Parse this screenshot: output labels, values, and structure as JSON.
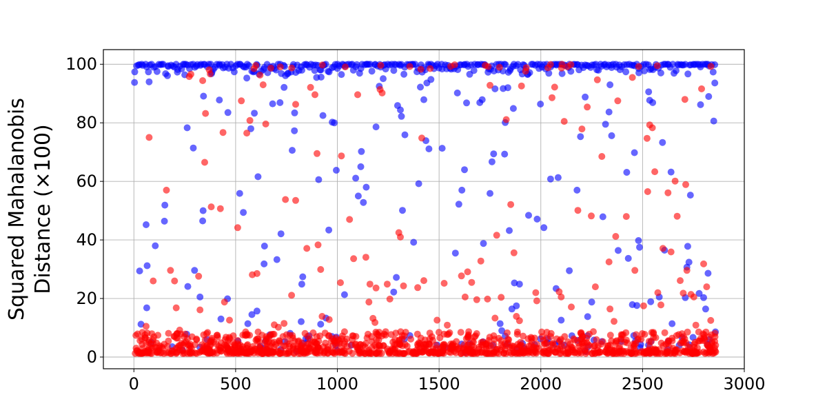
{
  "chart_data": {
    "type": "scatter",
    "title": "",
    "xlabel": "",
    "ylabel": "Squared Mahalanobis\nDistance (×100)",
    "xlim": [
      -150,
      3000
    ],
    "ylim": [
      -4,
      105
    ],
    "xticks": [
      0,
      500,
      1000,
      1500,
      2000,
      2500,
      3000
    ],
    "yticks": [
      0,
      20,
      40,
      60,
      80,
      100
    ],
    "grid": true,
    "point_count_per_series": 2860,
    "series": [
      {
        "color": "#0000ff",
        "points": [
          [
            3,
            93.8
          ],
          [
            28,
            29.4
          ],
          [
            35,
            11.2
          ],
          [
            60,
            45.2
          ],
          [
            63,
            16.8
          ],
          [
            65,
            31.2
          ],
          [
            75,
            94.0
          ],
          [
            85,
            5.0
          ],
          [
            105,
            38.0
          ],
          [
            150,
            46.4
          ],
          [
            152,
            51.9
          ],
          [
            165,
            96.1
          ],
          [
            215,
            98.2
          ],
          [
            250,
            96.4
          ],
          [
            260,
            7.8
          ],
          [
            262,
            78.3
          ],
          [
            265,
            24.1
          ],
          [
            292,
            71.4
          ],
          [
            298,
            29.6
          ],
          [
            325,
            20.5
          ],
          [
            338,
            46.5
          ],
          [
            340,
            50.0
          ],
          [
            342,
            89.1
          ],
          [
            360,
            3.0
          ],
          [
            383,
            97.2
          ],
          [
            420,
            87.8
          ],
          [
            428,
            13.0
          ],
          [
            460,
            19.9
          ],
          [
            462,
            83.5
          ],
          [
            520,
            55.9
          ],
          [
            538,
            49.4
          ],
          [
            555,
            95.3
          ],
          [
            560,
            11.4
          ],
          [
            575,
            78.0
          ],
          [
            580,
            14.5
          ],
          [
            592,
            83.3
          ],
          [
            605,
            15.7
          ],
          [
            610,
            61.6
          ],
          [
            640,
            31.8
          ],
          [
            642,
            37.9
          ],
          [
            668,
            7.6
          ],
          [
            682,
            86.5
          ],
          [
            703,
            33.3
          ],
          [
            718,
            86.9
          ],
          [
            723,
            42.1
          ],
          [
            738,
            92.1
          ],
          [
            745,
            96.1
          ],
          [
            768,
            8.1
          ],
          [
            778,
            70.6
          ],
          [
            789,
            77.3
          ],
          [
            790,
            83.4
          ],
          [
            822,
            12.1
          ],
          [
            830,
            27.4
          ],
          [
            825,
            24.9
          ],
          [
            898,
            95.5
          ],
          [
            908,
            60.6
          ],
          [
            918,
            11.2
          ],
          [
            920,
            95.6
          ],
          [
            929,
            82.5
          ],
          [
            944,
            13.3
          ],
          [
            958,
            43.4
          ],
          [
            975,
            80.2
          ],
          [
            985,
            80.0
          ],
          [
            995,
            63.8
          ],
          [
            1020,
            96.5
          ],
          [
            1035,
            21.3
          ],
          [
            1090,
            61.1
          ],
          [
            1103,
            55.0
          ],
          [
            1115,
            65.0
          ],
          [
            1118,
            70.2
          ],
          [
            1128,
            52.8
          ],
          [
            1142,
            58.0
          ],
          [
            1190,
            78.6
          ],
          [
            1206,
            92.5
          ],
          [
            1225,
            95.1
          ],
          [
            1277,
            22.2
          ],
          [
            1290,
            27.2
          ],
          [
            1296,
            85.9
          ],
          [
            1310,
            84.4
          ],
          [
            1315,
            82.2
          ],
          [
            1320,
            50.1
          ],
          [
            1332,
            75.9
          ],
          [
            1375,
            39.2
          ],
          [
            1400,
            59.2
          ],
          [
            1408,
            92.2
          ],
          [
            1425,
            87.9
          ],
          [
            1435,
            73.9
          ],
          [
            1440,
            93.6
          ],
          [
            1450,
            71.1
          ],
          [
            1460,
            94.8
          ],
          [
            1490,
            4.1
          ],
          [
            1515,
            71.3
          ],
          [
            1580,
            35.5
          ],
          [
            1590,
            90.2
          ],
          [
            1597,
            52.2
          ],
          [
            1612,
            57.0
          ],
          [
            1625,
            64.0
          ],
          [
            1635,
            86.8
          ],
          [
            1700,
            86.9
          ],
          [
            1712,
            87.9
          ],
          [
            1718,
            38.8
          ],
          [
            1750,
            55.9
          ],
          [
            1760,
            66.7
          ],
          [
            1768,
            69.4
          ],
          [
            1775,
            91.6
          ],
          [
            1800,
            11.4
          ],
          [
            1808,
            9.0
          ],
          [
            1815,
            91.7
          ],
          [
            1822,
            69.3
          ],
          [
            1825,
            80.1
          ],
          [
            1838,
            92.0
          ],
          [
            1845,
            43.2
          ],
          [
            1858,
            16.4
          ],
          [
            1865,
            84.9
          ],
          [
            1870,
            25.3
          ],
          [
            1880,
            17.5
          ],
          [
            1895,
            24.9
          ],
          [
            1935,
            96.5
          ],
          [
            1940,
            48.4
          ],
          [
            1982,
            47.1
          ],
          [
            1998,
            86.4
          ],
          [
            2015,
            44.2
          ],
          [
            2035,
            6.2
          ],
          [
            2048,
            60.8
          ],
          [
            2075,
            23.4
          ],
          [
            2085,
            61.3
          ],
          [
            2100,
            12.6
          ],
          [
            2140,
            29.5
          ],
          [
            2178,
            57.0
          ],
          [
            2195,
            75.3
          ],
          [
            2218,
            88.8
          ],
          [
            2230,
            13.8
          ],
          [
            2250,
            18.8
          ],
          [
            2305,
            47.9
          ],
          [
            2318,
            79.5
          ],
          [
            2335,
            83.7
          ],
          [
            2340,
            93.0
          ],
          [
            2348,
            75.6
          ],
          [
            2380,
            36.4
          ],
          [
            2395,
            5.3
          ],
          [
            2422,
            63.1
          ],
          [
            2430,
            33.7
          ],
          [
            2450,
            17.9
          ],
          [
            2460,
            69.8
          ],
          [
            2465,
            5.4
          ],
          [
            2472,
            17.6
          ],
          [
            2480,
            39.8
          ],
          [
            2485,
            37.5
          ],
          [
            2530,
            90.6
          ],
          [
            2535,
            87.7
          ],
          [
            2540,
            18.9
          ],
          [
            2550,
            86.9
          ],
          [
            2582,
            20.5
          ],
          [
            2598,
            73.3
          ],
          [
            2608,
            36.5
          ],
          [
            2640,
            63.2
          ],
          [
            2645,
            11.4
          ],
          [
            2680,
            4.0
          ],
          [
            2710,
            20.3
          ],
          [
            2718,
            30.7
          ],
          [
            2722,
            37.8
          ],
          [
            2728,
            32.4
          ],
          [
            2735,
            55.3
          ],
          [
            2748,
            6.7
          ],
          [
            2778,
            21.7
          ],
          [
            2785,
            86.2
          ],
          [
            2800,
            20.3
          ],
          [
            2810,
            16.4
          ],
          [
            2822,
            28.6
          ],
          [
            2825,
            89.0
          ],
          [
            2850,
            80.6
          ],
          [
            2855,
            93.6
          ],
          [
            2858,
            8.6
          ]
        ]
      },
      {
        "color": "#ff0000",
        "points": [
          [
            10,
            7.4
          ],
          [
            60,
            10.5
          ],
          [
            75,
            75.0
          ],
          [
            95,
            26.0
          ],
          [
            160,
            57.0
          ],
          [
            170,
            8.1
          ],
          [
            180,
            29.6
          ],
          [
            200,
            26.0
          ],
          [
            208,
            16.8
          ],
          [
            225,
            9.2
          ],
          [
            272,
            95.8
          ],
          [
            280,
            96.6
          ],
          [
            318,
            27.6
          ],
          [
            325,
            16.1
          ],
          [
            338,
            94.4
          ],
          [
            348,
            66.5
          ],
          [
            352,
            83.2
          ],
          [
            370,
            98.1
          ],
          [
            375,
            96.7
          ],
          [
            380,
            51.3
          ],
          [
            425,
            50.7
          ],
          [
            438,
            76.7
          ],
          [
            445,
            18.8
          ],
          [
            470,
            12.6
          ],
          [
            510,
            44.2
          ],
          [
            528,
            87.5
          ],
          [
            555,
            76.5
          ],
          [
            570,
            80.8
          ],
          [
            582,
            28.1
          ],
          [
            605,
            28.5
          ],
          [
            620,
            96.3
          ],
          [
            635,
            93.0
          ],
          [
            648,
            79.6
          ],
          [
            670,
            7.3
          ],
          [
            690,
            11.0
          ],
          [
            710,
            10.2
          ],
          [
            738,
            11.5
          ],
          [
            745,
            53.8
          ],
          [
            775,
            21.1
          ],
          [
            795,
            53.5
          ],
          [
            795,
            86.3
          ],
          [
            850,
            37.1
          ],
          [
            868,
            92.1
          ],
          [
            890,
            89.6
          ],
          [
            900,
            69.5
          ],
          [
            905,
            38.3
          ],
          [
            918,
            29.9
          ],
          [
            925,
            13.9
          ],
          [
            960,
            12.8
          ],
          [
            1015,
            25.4
          ],
          [
            1020,
            68.7
          ],
          [
            1060,
            47.0
          ],
          [
            1080,
            33.6
          ],
          [
            1100,
            89.6
          ],
          [
            1140,
            34.1
          ],
          [
            1155,
            18.8
          ],
          [
            1160,
            24.9
          ],
          [
            1175,
            13.2
          ],
          [
            1185,
            11.8
          ],
          [
            1190,
            23.6
          ],
          [
            1210,
            91.4
          ],
          [
            1220,
            90.2
          ],
          [
            1245,
            24.9
          ],
          [
            1258,
            19.8
          ],
          [
            1302,
            42.5
          ],
          [
            1310,
            41.0
          ],
          [
            1325,
            24.3
          ],
          [
            1395,
            23.7
          ],
          [
            1410,
            98.3
          ],
          [
            1415,
            74.8
          ],
          [
            1425,
            26.1
          ],
          [
            1490,
            12.6
          ],
          [
            1525,
            25.2
          ],
          [
            1540,
            10.9
          ],
          [
            1610,
            27.7
          ],
          [
            1628,
            20.5
          ],
          [
            1640,
            29.1
          ],
          [
            1660,
            25.5
          ],
          [
            1685,
            19.6
          ],
          [
            1705,
            32.8
          ],
          [
            1738,
            19.8
          ],
          [
            1750,
            92.8
          ],
          [
            1775,
            13.3
          ],
          [
            1783,
            41.6
          ],
          [
            1805,
            20.4
          ],
          [
            1830,
            81.1
          ],
          [
            1852,
            52.1
          ],
          [
            1868,
            35.6
          ],
          [
            1880,
            13.9
          ],
          [
            1895,
            12.4
          ],
          [
            1905,
            92.6
          ],
          [
            1925,
            97.6
          ],
          [
            1975,
            22.0
          ],
          [
            1980,
            19.2
          ],
          [
            2055,
            88.6
          ],
          [
            2068,
            92.2
          ],
          [
            2090,
            22.3
          ],
          [
            2100,
            20.5
          ],
          [
            2115,
            80.5
          ],
          [
            2150,
            17.1
          ],
          [
            2182,
            50.1
          ],
          [
            2202,
            77.9
          ],
          [
            2228,
            85.4
          ],
          [
            2248,
            48.2
          ],
          [
            2268,
            24.0
          ],
          [
            2278,
            94.7
          ],
          [
            2300,
            68.5
          ],
          [
            2335,
            32.5
          ],
          [
            2340,
            16.4
          ],
          [
            2360,
            12.2
          ],
          [
            2368,
            41.2
          ],
          [
            2378,
            87.5
          ],
          [
            2420,
            48.0
          ],
          [
            2450,
            95.5
          ],
          [
            2462,
            29.6
          ],
          [
            2505,
            17.5
          ],
          [
            2522,
            74.7
          ],
          [
            2525,
            56.5
          ],
          [
            2535,
            79.3
          ],
          [
            2548,
            78.3
          ],
          [
            2560,
            63.3
          ],
          [
            2575,
            22.0
          ],
          [
            2590,
            17.8
          ],
          [
            2600,
            37.1
          ],
          [
            2625,
            56.1
          ],
          [
            2640,
            35.9
          ],
          [
            2660,
            60.1
          ],
          [
            2670,
            48.1
          ],
          [
            2685,
            26.1
          ],
          [
            2700,
            21.8
          ],
          [
            2708,
            88.0
          ],
          [
            2712,
            58.9
          ],
          [
            2718,
            29.6
          ],
          [
            2738,
            21.4
          ],
          [
            2752,
            20.5
          ],
          [
            2762,
            10.9
          ],
          [
            2790,
            91.6
          ],
          [
            2800,
            31.8
          ],
          [
            2815,
            24.0
          ],
          [
            2835,
            12.5
          ]
        ]
      }
    ]
  }
}
